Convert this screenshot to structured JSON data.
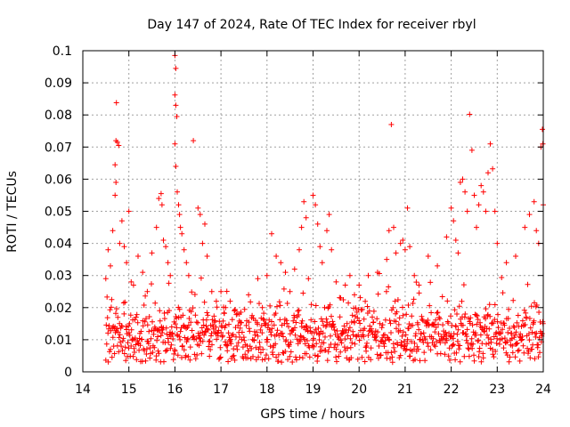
{
  "chart_data": {
    "type": "scatter",
    "title": "Day 147 of 2024, Rate Of TEC Index for receiver rbyl",
    "xlabel": "GPS time / hours",
    "ylabel": "ROTI / TECUs",
    "xlim": [
      14,
      24
    ],
    "ylim": [
      0,
      0.1
    ],
    "xticks": [
      "14",
      "15",
      "16",
      "17",
      "18",
      "19",
      "20",
      "21",
      "22",
      "23",
      "24"
    ],
    "yticks": [
      "0",
      "0.01",
      "0.02",
      "0.03",
      "0.04",
      "0.05",
      "0.06",
      "0.07",
      "0.08",
      "0.09",
      "0.1"
    ],
    "grid": true,
    "marker": "+",
    "series": [
      {
        "name": "ROTI",
        "color": "#ff0000",
        "points": [
          [
            14.5,
            0.029
          ],
          [
            14.55,
            0.038
          ],
          [
            14.6,
            0.033
          ],
          [
            14.65,
            0.044
          ],
          [
            14.7,
            0.055
          ],
          [
            14.72,
            0.059
          ],
          [
            14.7,
            0.0645
          ],
          [
            14.72,
            0.072
          ],
          [
            14.75,
            0.0715
          ],
          [
            14.78,
            0.0705
          ],
          [
            14.73,
            0.0838
          ],
          [
            14.8,
            0.04
          ],
          [
            14.85,
            0.047
          ],
          [
            14.9,
            0.039
          ],
          [
            14.95,
            0.034
          ],
          [
            15.0,
            0.05
          ],
          [
            15.05,
            0.028
          ],
          [
            15.1,
            0.027
          ],
          [
            15.2,
            0.036
          ],
          [
            15.3,
            0.031
          ],
          [
            15.4,
            0.025
          ],
          [
            15.5,
            0.037
          ],
          [
            15.6,
            0.045
          ],
          [
            15.65,
            0.054
          ],
          [
            15.7,
            0.0555
          ],
          [
            15.72,
            0.052
          ],
          [
            15.75,
            0.041
          ],
          [
            15.8,
            0.039
          ],
          [
            15.85,
            0.034
          ],
          [
            15.9,
            0.03
          ],
          [
            16.0,
            0.0985
          ],
          [
            16.02,
            0.0945
          ],
          [
            16.0,
            0.0862
          ],
          [
            16.02,
            0.083
          ],
          [
            16.04,
            0.0795
          ],
          [
            16.0,
            0.071
          ],
          [
            16.02,
            0.064
          ],
          [
            16.05,
            0.056
          ],
          [
            16.08,
            0.052
          ],
          [
            16.1,
            0.049
          ],
          [
            16.12,
            0.045
          ],
          [
            16.15,
            0.043
          ],
          [
            16.2,
            0.038
          ],
          [
            16.25,
            0.034
          ],
          [
            16.3,
            0.03
          ],
          [
            16.4,
            0.072
          ],
          [
            16.5,
            0.051
          ],
          [
            16.55,
            0.049
          ],
          [
            16.6,
            0.04
          ],
          [
            16.65,
            0.046
          ],
          [
            16.7,
            0.036
          ],
          [
            16.8,
            0.025
          ],
          [
            16.9,
            0.022
          ],
          [
            17.0,
            0.025
          ],
          [
            17.1,
            0.02
          ],
          [
            17.2,
            0.022
          ],
          [
            17.3,
            0.019
          ],
          [
            17.4,
            0.018
          ],
          [
            17.6,
            0.024
          ],
          [
            17.8,
            0.029
          ],
          [
            17.9,
            0.02
          ],
          [
            18.0,
            0.03
          ],
          [
            18.1,
            0.043
          ],
          [
            18.2,
            0.036
          ],
          [
            18.3,
            0.034
          ],
          [
            18.4,
            0.031
          ],
          [
            18.5,
            0.025
          ],
          [
            18.6,
            0.032
          ],
          [
            18.7,
            0.038
          ],
          [
            18.75,
            0.045
          ],
          [
            18.8,
            0.053
          ],
          [
            18.85,
            0.048
          ],
          [
            18.9,
            0.029
          ],
          [
            19.0,
            0.055
          ],
          [
            19.05,
            0.052
          ],
          [
            19.1,
            0.046
          ],
          [
            19.15,
            0.039
          ],
          [
            19.2,
            0.034
          ],
          [
            19.3,
            0.044
          ],
          [
            19.35,
            0.049
          ],
          [
            19.4,
            0.038
          ],
          [
            19.5,
            0.028
          ],
          [
            19.6,
            0.023
          ],
          [
            19.7,
            0.027
          ],
          [
            19.8,
            0.03
          ],
          [
            19.9,
            0.024
          ],
          [
            20.0,
            0.027
          ],
          [
            20.2,
            0.03
          ],
          [
            20.4,
            0.031
          ],
          [
            20.6,
            0.035
          ],
          [
            20.65,
            0.044
          ],
          [
            20.7,
            0.077
          ],
          [
            20.75,
            0.045
          ],
          [
            20.8,
            0.037
          ],
          [
            20.9,
            0.04
          ],
          [
            20.95,
            0.041
          ],
          [
            21.0,
            0.038
          ],
          [
            21.05,
            0.051
          ],
          [
            21.1,
            0.039
          ],
          [
            21.2,
            0.03
          ],
          [
            21.3,
            0.027
          ],
          [
            21.5,
            0.036
          ],
          [
            21.7,
            0.033
          ],
          [
            21.9,
            0.042
          ],
          [
            22.0,
            0.051
          ],
          [
            22.05,
            0.047
          ],
          [
            22.1,
            0.041
          ],
          [
            22.15,
            0.037
          ],
          [
            22.2,
            0.059
          ],
          [
            22.25,
            0.06
          ],
          [
            22.3,
            0.056
          ],
          [
            22.35,
            0.05
          ],
          [
            22.4,
            0.0802
          ],
          [
            22.45,
            0.069
          ],
          [
            22.5,
            0.055
          ],
          [
            22.55,
            0.045
          ],
          [
            22.6,
            0.052
          ],
          [
            22.65,
            0.058
          ],
          [
            22.7,
            0.056
          ],
          [
            22.75,
            0.05
          ],
          [
            22.8,
            0.062
          ],
          [
            22.85,
            0.071
          ],
          [
            22.9,
            0.0632
          ],
          [
            22.95,
            0.05
          ],
          [
            23.0,
            0.04
          ],
          [
            23.2,
            0.034
          ],
          [
            23.4,
            0.036
          ],
          [
            23.6,
            0.045
          ],
          [
            23.7,
            0.049
          ],
          [
            23.8,
            0.053
          ],
          [
            23.85,
            0.044
          ],
          [
            23.9,
            0.04
          ],
          [
            23.95,
            0.07
          ],
          [
            23.98,
            0.0755
          ],
          [
            23.99,
            0.071
          ],
          [
            24.0,
            0.052
          ]
        ],
        "baseline": {
          "x_start": 14.5,
          "x_end": 24.0,
          "step": 0.009,
          "typical_value": 0.011,
          "spread": 0.009,
          "minimum": 0.003
        }
      }
    ]
  }
}
